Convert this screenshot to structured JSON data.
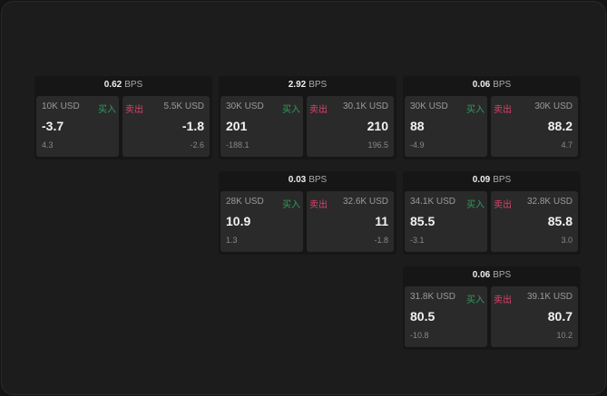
{
  "labels": {
    "buy": "买入",
    "sell": "卖出",
    "unit": "BPS"
  },
  "colors": {
    "buy": "#2e9e5b",
    "sell": "#d9436a"
  },
  "widgets": [
    {
      "spread": "0.62",
      "bid": {
        "size": "10K USD",
        "price": "-3.7",
        "change": "4.3"
      },
      "ask": {
        "size": "5.5K USD",
        "price": "-1.8",
        "change": "-2.6"
      }
    },
    {
      "spread": "2.92",
      "bid": {
        "size": "30K USD",
        "price": "201",
        "change": "-188.1"
      },
      "ask": {
        "size": "30.1K USD",
        "price": "210",
        "change": "196.5"
      }
    },
    {
      "spread": "0.06",
      "bid": {
        "size": "30K USD",
        "price": "88",
        "change": "-4.9"
      },
      "ask": {
        "size": "30K USD",
        "price": "88.2",
        "change": "4.7"
      }
    },
    {
      "spread": "0.03",
      "bid": {
        "size": "28K USD",
        "price": "10.9",
        "change": "1.3"
      },
      "ask": {
        "size": "32.6K USD",
        "price": "11",
        "change": "-1.8"
      }
    },
    {
      "spread": "0.09",
      "bid": {
        "size": "34.1K USD",
        "price": "85.5",
        "change": "-3.1"
      },
      "ask": {
        "size": "32.8K USD",
        "price": "85.8",
        "change": "3.0"
      }
    },
    {
      "spread": "0.06",
      "bid": {
        "size": "31.8K USD",
        "price": "80.5",
        "change": "-10.8"
      },
      "ask": {
        "size": "39.1K USD",
        "price": "80.7",
        "change": "10.2"
      }
    }
  ]
}
